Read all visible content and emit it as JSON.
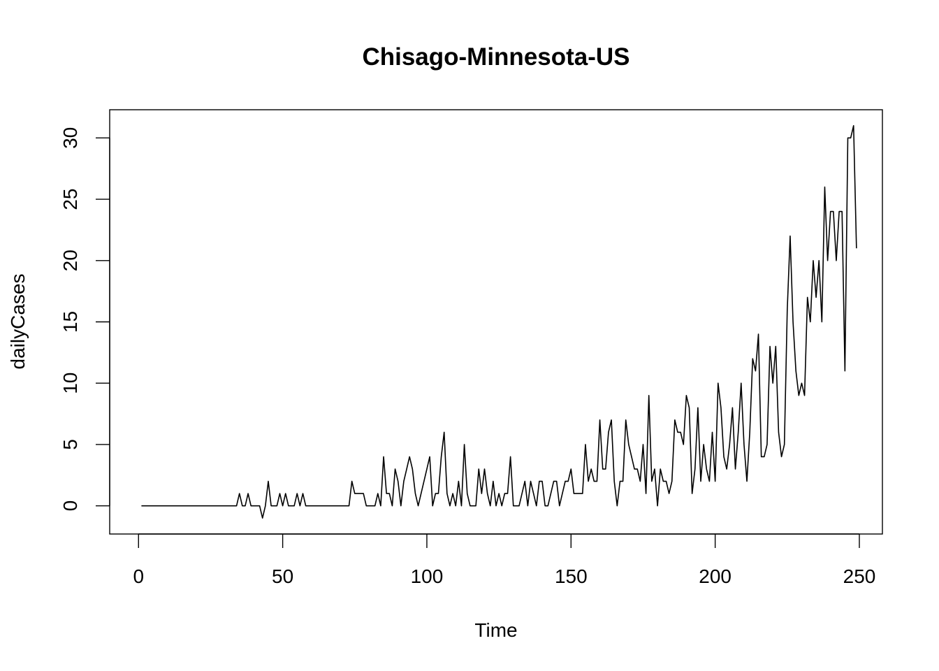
{
  "chart_data": {
    "type": "line",
    "title": "Chisago-Minnesota-US",
    "xlabel": "Time",
    "ylabel": "dailyCases",
    "xlim": [
      -10,
      258
    ],
    "ylim": [
      -2.3,
      32.3
    ],
    "xticks": [
      0,
      50,
      100,
      150,
      200,
      250
    ],
    "yticks": [
      0,
      5,
      10,
      15,
      20,
      25,
      30
    ],
    "grid": false,
    "legend": "none",
    "series_color": "#000000",
    "x_start": 1,
    "series": [
      {
        "values": [
          0,
          0,
          0,
          0,
          0,
          0,
          0,
          0,
          0,
          0,
          0,
          0,
          0,
          0,
          0,
          0,
          0,
          0,
          0,
          0,
          0,
          0,
          0,
          0,
          0,
          0,
          0,
          0,
          0,
          0,
          0,
          0,
          0,
          0,
          1,
          0,
          0,
          1,
          0,
          0,
          0,
          0,
          -1,
          0,
          2,
          0,
          0,
          0,
          1,
          0,
          1,
          0,
          0,
          0,
          1,
          0,
          1,
          0,
          0,
          0,
          0,
          0,
          0,
          0,
          0,
          0,
          0,
          0,
          0,
          0,
          0,
          0,
          0,
          2,
          1,
          1,
          1,
          1,
          0,
          0,
          0,
          0,
          1,
          0,
          4,
          1,
          1,
          0,
          3,
          2,
          0,
          2,
          3,
          4,
          3,
          1,
          0,
          1,
          2,
          3,
          4,
          0,
          1,
          1,
          4,
          6,
          1,
          0,
          1,
          0,
          2,
          0,
          5,
          1,
          0,
          0,
          0,
          3,
          1,
          3,
          1,
          0,
          2,
          0,
          1,
          0,
          1,
          1,
          4,
          0,
          0,
          0,
          1,
          2,
          0,
          2,
          1,
          0,
          2,
          2,
          0,
          0,
          1,
          2,
          2,
          0,
          1,
          2,
          2,
          3,
          1,
          1,
          1,
          1,
          5,
          2,
          3,
          2,
          2,
          7,
          3,
          3,
          6,
          7,
          2,
          0,
          2,
          2,
          7,
          5,
          4,
          3,
          3,
          2,
          5,
          1,
          9,
          2,
          3,
          0,
          3,
          2,
          2,
          1,
          2,
          7,
          6,
          6,
          5,
          9,
          8,
          1,
          3,
          8,
          2,
          5,
          3,
          2,
          6,
          2,
          10,
          8,
          4,
          3,
          5,
          8,
          3,
          6,
          10,
          5,
          2,
          6,
          12,
          11,
          14,
          4,
          4,
          5,
          13,
          10,
          13,
          6,
          4,
          5,
          16,
          22,
          15,
          11,
          9,
          10,
          9,
          17,
          15,
          20,
          17,
          20,
          15,
          26,
          20,
          24,
          24,
          20,
          24,
          24,
          11,
          30,
          30,
          31,
          21
        ]
      }
    ]
  }
}
